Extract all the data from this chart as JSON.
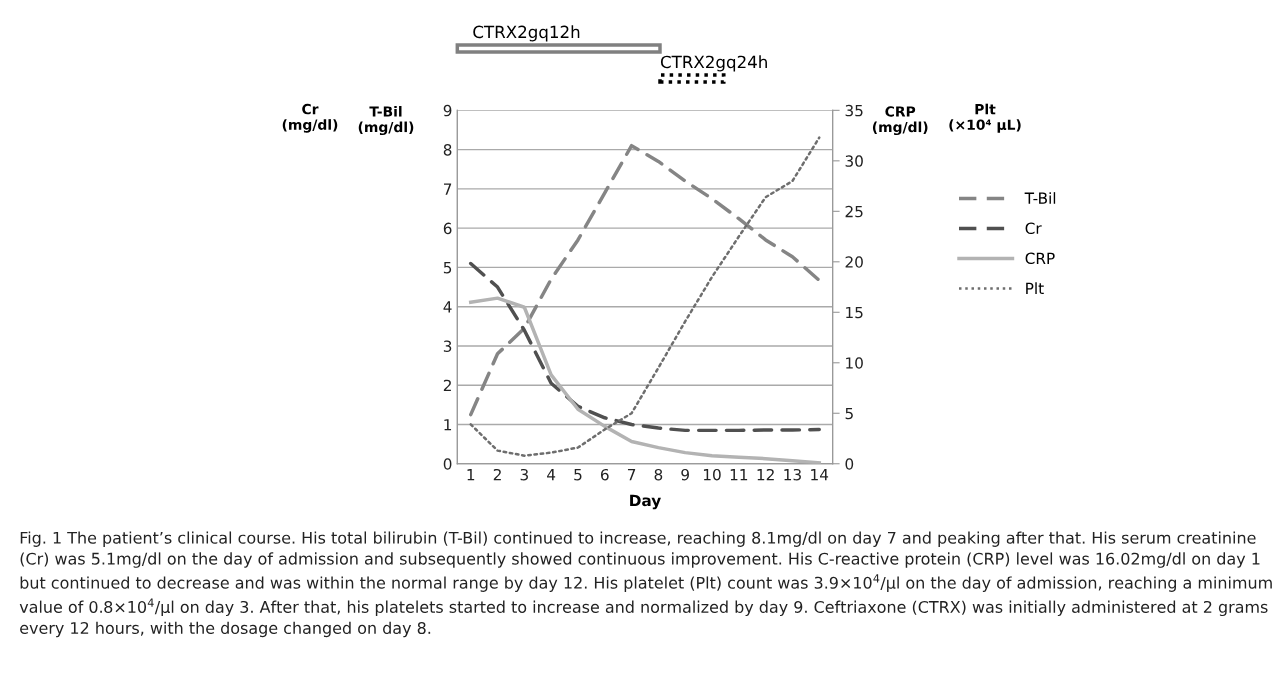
{
  "chart_data": {
    "type": "line",
    "xlabel": "Day",
    "ylabel": "T-Bil\n(mg/dl)",
    "y2label": "CRP\n(mg/dl)",
    "categories": [
      "1",
      "2",
      "3",
      "4",
      "5",
      "6",
      "7",
      "8",
      "9",
      "10",
      "11",
      "12",
      "13",
      "14"
    ],
    "ylim": [
      0,
      9
    ],
    "yticks": [
      0,
      1,
      2,
      3,
      4,
      5,
      6,
      7,
      8,
      9
    ],
    "y2lim": [
      0,
      35
    ],
    "y2ticks": [
      0,
      5,
      10,
      15,
      20,
      25,
      30,
      35
    ],
    "grid": "y",
    "legend": "right",
    "series": [
      {
        "name": "T-Bil",
        "color": "#858585",
        "line_style": "dashed",
        "values": [
          1.25,
          2.8,
          3.45,
          4.7,
          5.7,
          6.9,
          8.1,
          7.7,
          7.2,
          6.75,
          6.24,
          5.7,
          5.27,
          4.67
        ]
      },
      {
        "name": "Cr",
        "color": "#505050",
        "line_style": "dashed",
        "values": [
          5.1,
          4.5,
          3.4,
          2.05,
          1.46,
          1.17,
          1.0,
          0.91,
          0.85,
          0.85,
          0.85,
          0.86,
          0.86,
          0.87
        ]
      },
      {
        "name": "CRP",
        "color": "#b3b3b3",
        "line_style": "solid",
        "axis": "y2",
        "values": [
          16.0,
          16.4,
          15.5,
          8.8,
          5.4,
          3.7,
          2.2,
          1.6,
          1.1,
          0.8,
          0.65,
          0.5,
          0.3,
          0.1
        ]
      },
      {
        "name": "Plt",
        "color": "#6e6e6e",
        "line_style": "dotted",
        "axis": "y2",
        "values": [
          3.9,
          1.3,
          0.8,
          1.1,
          1.6,
          3.4,
          5.0,
          9.5,
          14.1,
          18.5,
          22.5,
          26.4,
          28.0,
          32.3
        ]
      }
    ],
    "annotations": [
      "CTRX2gq12h",
      "CTRX2gq24h",
      "Cr\n(mg/dl)",
      "Plt\n(×10⁴ μL)",
      "Fig. 1 The patient’s clinical course. His total bilirubin (T-Bil) continued to increase, reaching 8.1mg/dl on day 7 and peaking after that. His serum creatinine (Cr) was 5.1mg/dl on the day of admission and subsequently showed continuous improvement. His C-reactive protein (CRP) level was 16.02mg/dl on day 1 but continued to decrease and was within the normal range by day 12. His platelet (Plt) count was 3.9×10$^{4}$/μl on the day of admission, reaching a minimum value of 0.8×10$^{4}$/μl on day 3. After that, his platelets started to increase and normalized by day 9. Ceftriaxone (CTRX) was initially administered at 2 grams every 12 hours, with the dosage changed on day 8."
    ]
  }
}
